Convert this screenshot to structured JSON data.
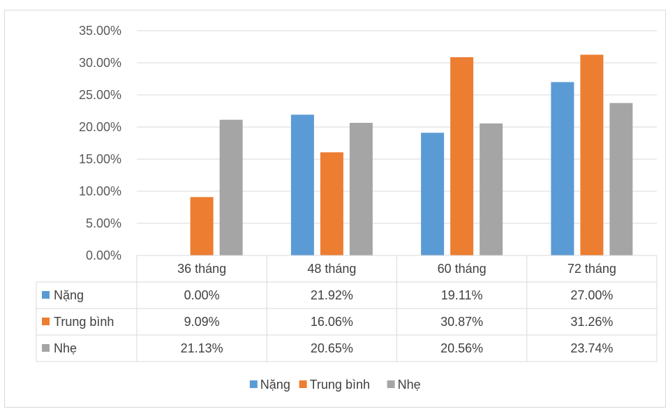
{
  "chart_data": {
    "type": "bar",
    "title": "",
    "xlabel": "",
    "ylabel": "",
    "ylim": [
      0,
      0.35
    ],
    "y_ticks": [
      "0.00%",
      "5.00%",
      "10.00%",
      "15.00%",
      "20.00%",
      "25.00%",
      "30.00%",
      "35.00%"
    ],
    "grid": true,
    "legend_position": "bottom",
    "categories": [
      "36 tháng",
      "48 tháng",
      "60 tháng",
      "72 tháng"
    ],
    "series": [
      {
        "name": "Nặng",
        "color": "#5b9bd5",
        "values": [
          0.0,
          0.2192,
          0.1911,
          0.27
        ],
        "labels": [
          "0.00%",
          "21.92%",
          "19.11%",
          "27.00%"
        ]
      },
      {
        "name": "Trung bình",
        "color": "#ed7d31",
        "values": [
          0.0909,
          0.1606,
          0.3087,
          0.3126
        ],
        "labels": [
          "9.09%",
          "16.06%",
          "30.87%",
          "31.26%"
        ]
      },
      {
        "name": "Nhẹ",
        "color": "#a5a5a5",
        "values": [
          0.2113,
          0.2065,
          0.2056,
          0.2374
        ],
        "labels": [
          "21.13%",
          "20.65%",
          "20.56%",
          "23.74%"
        ]
      }
    ]
  }
}
